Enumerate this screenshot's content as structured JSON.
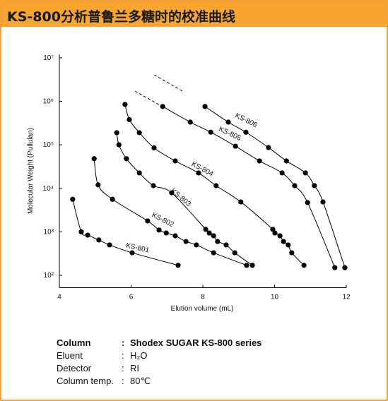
{
  "header": {
    "title": "KS-800分析普鲁兰多糖时的校准曲线"
  },
  "chart_data": {
    "type": "scatter",
    "x_label": "Elution volume (mL)",
    "y_label": "Molecular Weight (Pullulan)",
    "xlim": [
      4,
      12
    ],
    "xticks": [
      4,
      6,
      8,
      10,
      12
    ],
    "ylim": [
      52,
      12000000
    ],
    "log_y": true,
    "yticks": [
      {
        "value": 100,
        "label": "10²"
      },
      {
        "value": 1000,
        "label": "10³"
      },
      {
        "value": 10000,
        "label": "10⁴"
      },
      {
        "value": 100000,
        "label": "10⁵"
      },
      {
        "value": 1000000,
        "label": "10⁶"
      },
      {
        "value": 10000000,
        "label": "10⁷"
      }
    ],
    "series": [
      {
        "name": "KS-801",
        "color": "#000000",
        "x": [
          4.37,
          4.61,
          4.79,
          5.1,
          5.4,
          6.03,
          7.31
        ],
        "values": [
          5600,
          1000,
          840,
          650,
          500,
          330,
          170
        ]
      },
      {
        "name": "KS-802",
        "color": "#000000",
        "x": [
          4.97,
          5.08,
          5.48,
          6.46,
          6.78,
          6.98,
          7.23,
          7.53,
          7.82,
          8.3,
          9.22
        ],
        "values": [
          48000,
          12000,
          5600,
          1780,
          1100,
          940,
          810,
          600,
          500,
          330,
          170
        ]
      },
      {
        "name": "KS-803",
        "color": "#000000",
        "x": [
          5.6,
          5.66,
          5.87,
          6.23,
          6.62,
          7.13,
          8.08,
          8.18,
          8.3,
          8.41,
          8.65,
          8.89,
          9.38
        ],
        "values": [
          190000,
          100000,
          48000,
          22600,
          11500,
          7900,
          1140,
          940,
          810,
          600,
          500,
          330,
          170
        ]
      },
      {
        "name": "KS-804",
        "color": "#000000",
        "x": [
          5.83,
          5.95,
          6.23,
          6.64,
          7.23,
          7.88,
          8.37,
          9.06,
          9.95,
          10.01,
          10.15,
          10.25,
          10.38,
          10.48,
          10.82
        ],
        "values": [
          850000,
          380000,
          190000,
          85000,
          42600,
          22600,
          11500,
          4860,
          1140,
          940,
          810,
          600,
          500,
          330,
          170
        ]
      },
      {
        "name": "KS-805",
        "color": "#000000",
        "x": [
          6.88,
          7.65,
          8.22,
          8.91,
          9.58,
          10.21,
          10.56,
          10.92,
          11.68
        ],
        "values": [
          760000,
          332000,
          195000,
          93000,
          42600,
          22600,
          11500,
          4700,
          150
        ]
      },
      {
        "name": "KS-806",
        "color": "#000000",
        "x": [
          8.06,
          8.71,
          9.2,
          9.83,
          10.33,
          10.86,
          11.11,
          11.35,
          11.96
        ],
        "values": [
          760000,
          332000,
          195000,
          86600,
          42600,
          22600,
          11500,
          4860,
          150
        ]
      }
    ]
  },
  "specs": [
    {
      "label": "Column",
      "value": "Shodex SUGAR KS-800 series"
    },
    {
      "label": "Eluent",
      "value": "H₂O"
    },
    {
      "label": "Detector",
      "value": "RI"
    },
    {
      "label": "Column temp.",
      "value": "80℃"
    }
  ],
  "separator": ":"
}
